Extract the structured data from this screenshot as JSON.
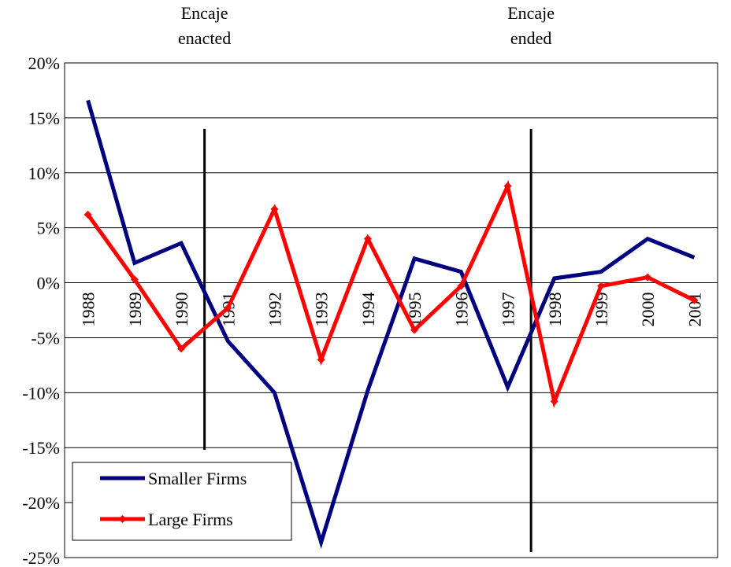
{
  "chart_data": {
    "type": "line",
    "categories": [
      "1988",
      "1989",
      "1990",
      "1991",
      "1992",
      "1993",
      "1994",
      "1995",
      "1996",
      "1997",
      "1998",
      "1999",
      "2000",
      "2001"
    ],
    "ylim": [
      -0.25,
      0.2
    ],
    "y_ticks": [
      0.2,
      0.15,
      0.1,
      0.05,
      0.0,
      -0.05,
      -0.1,
      -0.15,
      -0.2,
      -0.25
    ],
    "y_tick_labels": [
      "20%",
      "15%",
      "10%",
      "5%",
      "0%",
      "-5%",
      "-10%",
      "-15%",
      "-20%",
      "-25%"
    ],
    "grid": true,
    "legend_position": "bottom-left",
    "series": [
      {
        "name": "Smaller Firms",
        "color": "#00007f",
        "marker": "none",
        "values": [
          0.166,
          0.018,
          0.036,
          -0.053,
          -0.1,
          -0.236,
          -0.098,
          0.022,
          0.01,
          -0.095,
          0.004,
          0.01,
          0.04,
          0.023
        ]
      },
      {
        "name": "Large Firms",
        "color": "#ff0000",
        "marker": "diamond",
        "values": [
          0.062,
          0.003,
          -0.06,
          -0.023,
          0.067,
          -0.07,
          0.04,
          -0.043,
          -0.003,
          0.088,
          -0.108,
          -0.003,
          0.005,
          -0.016
        ]
      }
    ],
    "annotations": [
      {
        "label_line1": "Encaje",
        "label_line2": "enacted",
        "at_between": [
          "1990",
          "1991"
        ],
        "line_from": 0.14,
        "line_to": -0.152
      },
      {
        "label_line1": "Encaje",
        "label_line2": "ended",
        "at_between": [
          "1997",
          "1998"
        ],
        "line_from": 0.14,
        "line_to": -0.245
      }
    ]
  }
}
